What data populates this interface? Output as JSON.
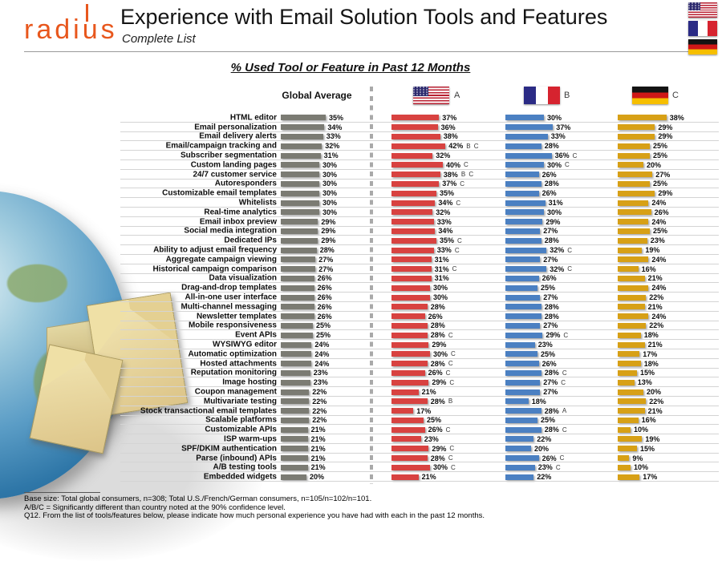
{
  "header": {
    "logo_text": "radius",
    "title": "Experience with Email Solution Tools and Features",
    "subtitle": "Complete List"
  },
  "section_title": "% Used Tool or Feature in Past 12 Months",
  "columns": {
    "global_label": "Global Average",
    "country_labels": [
      "A",
      "B",
      "C"
    ]
  },
  "chart_data": {
    "type": "bar",
    "title": "% Used Tool or Feature in Past 12 Months",
    "unit": "%",
    "xlim": [
      0,
      45
    ],
    "legend_position": "top",
    "grid": false,
    "categories": [
      "HTML editor",
      "Email personalization",
      "Email delivery alerts",
      "Email/campaign tracking and",
      "Subscriber segmentation",
      "Custom landing pages",
      "24/7 customer service",
      "Autoresponders",
      "Customizable email templates",
      "Whitelists",
      "Real-time analytics",
      "Email inbox preview",
      "Social media integration",
      "Dedicated IPs",
      "Ability to adjust email frequency",
      "Aggregate campaign viewing",
      "Historical campaign comparison",
      "Data visualization",
      "Drag-and-drop templates",
      "All-in-one user interface",
      "Multi-channel messaging",
      "Newsletter templates",
      "Mobile responsiveness",
      "Event APIs",
      "WYSIWYG editor",
      "Automatic optimization",
      "Hosted attachments",
      "Reputation monitoring",
      "Image hosting",
      "Coupon management",
      "Multivariate testing",
      "Stock transactional email templates",
      "Scalable platforms",
      "Customizable APIs",
      "ISP warm-ups",
      "SPF/DKIM authentication",
      "Parse (inbound) APIs",
      "A/B testing tools",
      "Embedded widgets"
    ],
    "series": [
      {
        "name": "Global Average",
        "slug": "global",
        "color": "#7b7b73",
        "values": [
          35,
          34,
          33,
          32,
          31,
          30,
          30,
          30,
          30,
          30,
          30,
          29,
          29,
          29,
          28,
          27,
          27,
          26,
          26,
          26,
          26,
          26,
          25,
          25,
          24,
          24,
          24,
          23,
          23,
          22,
          22,
          22,
          22,
          21,
          21,
          21,
          21,
          21,
          20
        ]
      },
      {
        "name": "U.S.",
        "slug": "us",
        "label": "A",
        "color": "#d84240",
        "values": [
          37,
          36,
          38,
          42,
          32,
          40,
          38,
          37,
          35,
          34,
          32,
          33,
          34,
          35,
          33,
          31,
          31,
          31,
          30,
          30,
          28,
          26,
          28,
          28,
          29,
          30,
          28,
          26,
          29,
          21,
          28,
          17,
          25,
          26,
          23,
          29,
          28,
          30,
          21
        ],
        "notes": [
          "",
          "",
          "",
          "B C",
          "",
          "C",
          "B C",
          "C",
          "",
          "C",
          "",
          "",
          "",
          "C",
          "C",
          "",
          "C",
          "",
          "",
          "",
          "",
          "",
          "",
          "C",
          "",
          "C",
          "C",
          "C",
          "C",
          "",
          "B",
          "",
          "",
          "C",
          "",
          "C",
          "C",
          "C",
          ""
        ]
      },
      {
        "name": "France",
        "slug": "france",
        "label": "B",
        "color": "#4b80c2",
        "values": [
          30,
          37,
          33,
          28,
          36,
          30,
          26,
          28,
          26,
          31,
          30,
          29,
          27,
          28,
          32,
          27,
          32,
          26,
          25,
          27,
          28,
          28,
          27,
          29,
          23,
          25,
          26,
          28,
          27,
          27,
          18,
          28,
          25,
          28,
          22,
          20,
          26,
          23,
          22
        ],
        "notes": [
          "",
          "",
          "",
          "",
          "C",
          "C",
          "",
          "",
          "",
          "",
          "",
          "",
          "",
          "",
          "C",
          "",
          "C",
          "",
          "",
          "",
          "",
          "",
          "",
          "C",
          "",
          "",
          "",
          "C",
          "C",
          "",
          "",
          "A",
          "",
          "C",
          "",
          "",
          "C",
          "C",
          ""
        ]
      },
      {
        "name": "Germany",
        "slug": "germany",
        "label": "C",
        "color": "#d7a016",
        "values": [
          38,
          29,
          29,
          25,
          25,
          20,
          27,
          25,
          29,
          24,
          26,
          24,
          25,
          23,
          19,
          24,
          16,
          21,
          24,
          22,
          21,
          24,
          22,
          18,
          21,
          17,
          18,
          15,
          13,
          20,
          22,
          21,
          16,
          10,
          19,
          15,
          9,
          10,
          17
        ]
      }
    ]
  },
  "footer": {
    "lines": [
      "Base size: Total global consumers, n=308; Total U.S./French/German consumers, n=105/n=102/n=101.",
      "A/B/C = Significantly different than country noted at the 90% confidence level.",
      "Q12. From the list of tools/features below, please indicate how much personal experience you have had with each in the past 12 months."
    ]
  }
}
